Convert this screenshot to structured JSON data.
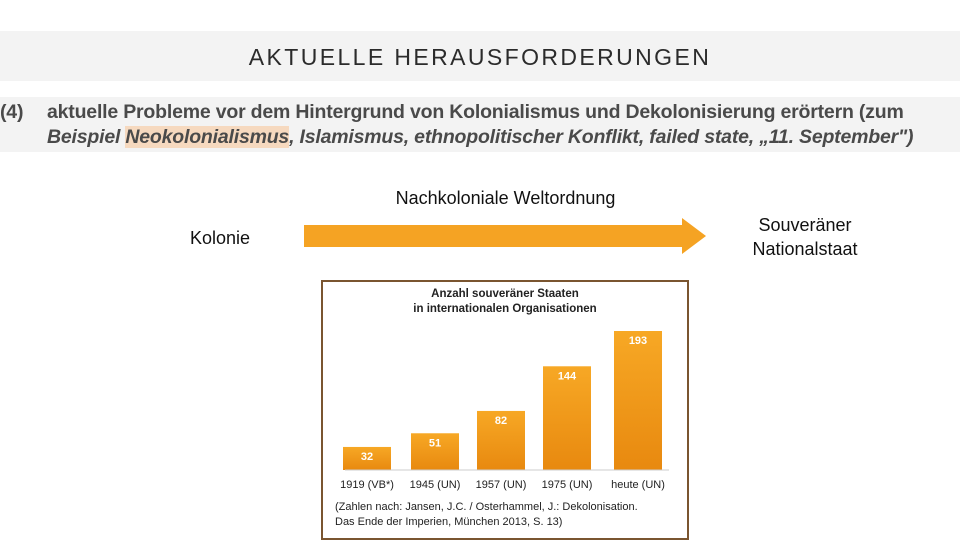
{
  "slide": {
    "title": "AKTUELLE HERAUSFORDERUNGEN"
  },
  "curriculum": {
    "number": "(4)",
    "line1": "aktuelle Probleme vor dem Hintergrund von Kolonialismus und Dekolonisierung erörtern (zum",
    "line2_prefix": "Beispiel",
    "line2_highlight": "Neokolonialismus",
    "line2_rest": ", Islamismus, ethnopolitischer Konflikt, failed state, „11. September\")"
  },
  "diagram": {
    "heading": "Nachkoloniale Weltordnung",
    "left_label": "Kolonie",
    "right_label_1": "Souveräner",
    "right_label_2": "Nationalstaat",
    "arrow_color": "#f5a323"
  },
  "chart_data": {
    "type": "bar",
    "title_line1": "Anzahl souveräner Staaten",
    "title_line2": "in internationalen Organisationen",
    "categories": [
      "1919 (VB*)",
      "1945 (UN)",
      "1957 (UN)",
      "1975 (UN)",
      "heute (UN)"
    ],
    "values": [
      32,
      51,
      82,
      144,
      193
    ],
    "value_labels": [
      "32",
      "51",
      "82",
      "144",
      "193"
    ],
    "ylim": [
      0,
      200
    ],
    "bar_color": "#f5a323",
    "bar_color_dark": "#e8890f",
    "source_line1": "(Zahlen nach:  Jansen, J.C. / Osterhammel, J.: Dekolonisation.",
    "source_line2": "Das Ende der Imperien, München 2013, S. 13)"
  }
}
